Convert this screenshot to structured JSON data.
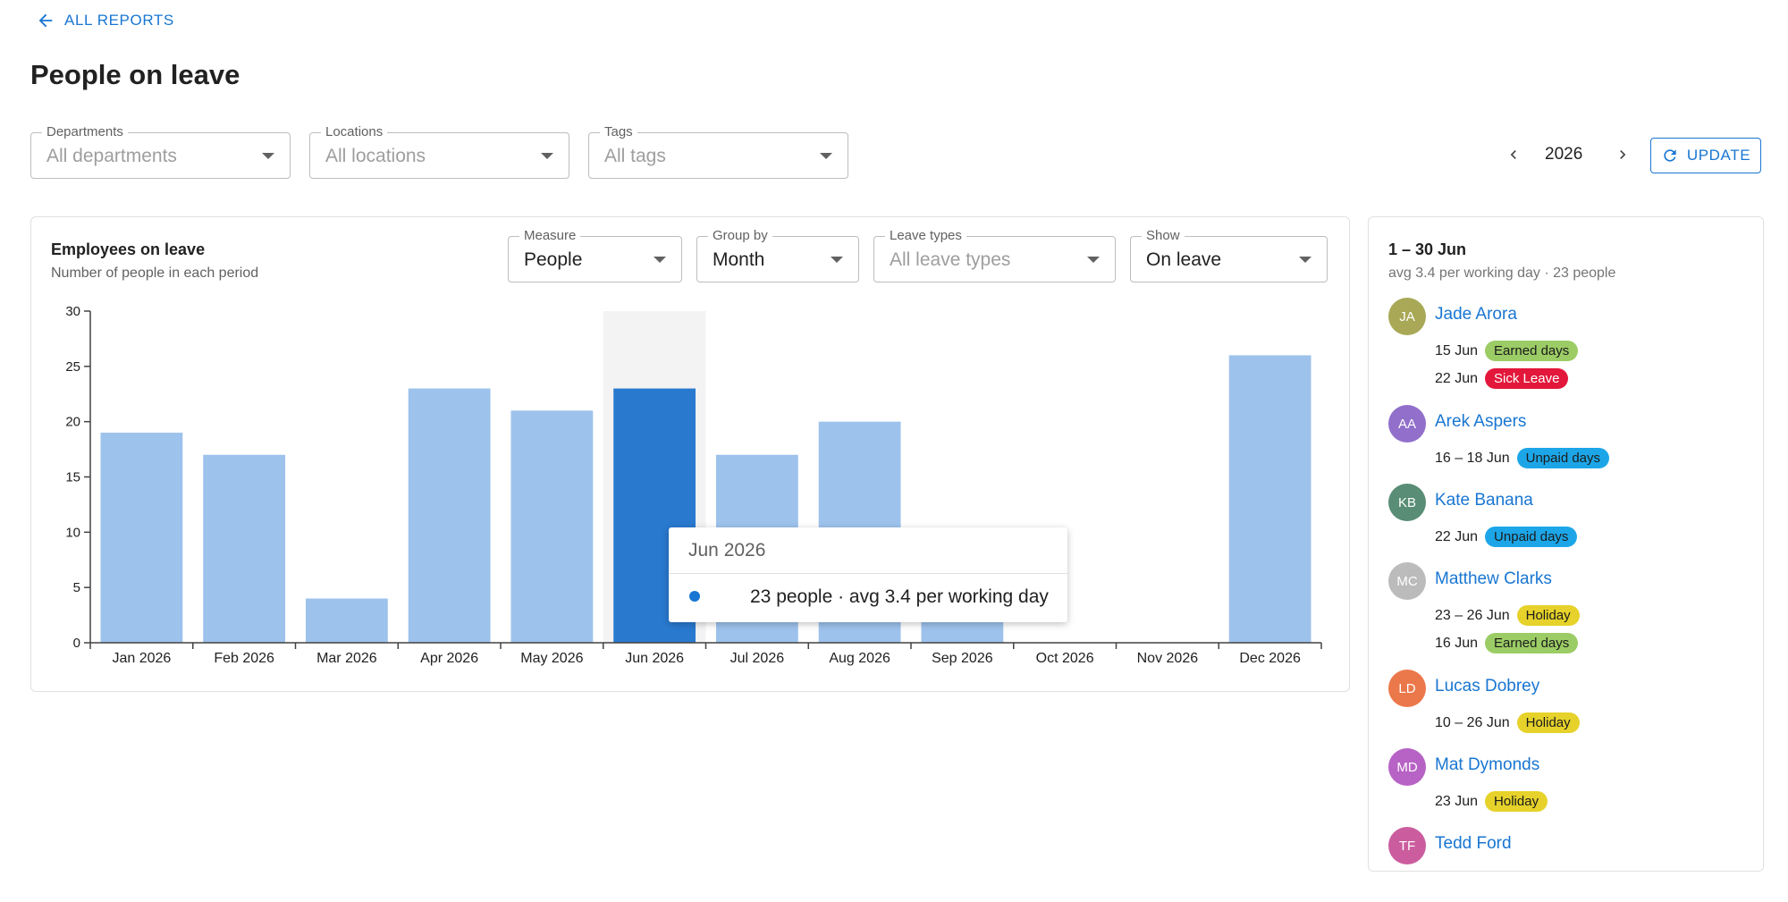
{
  "nav": {
    "back_label": "ALL REPORTS"
  },
  "page": {
    "title": "People on leave"
  },
  "filters": {
    "departments": {
      "label": "Departments",
      "value": "All departments"
    },
    "locations": {
      "label": "Locations",
      "value": "All locations"
    },
    "tags": {
      "label": "Tags",
      "value": "All tags"
    }
  },
  "year_nav": {
    "year": "2026",
    "update_label": "UPDATE"
  },
  "chart_card": {
    "title": "Employees on leave",
    "subtitle": "Number of people in each period",
    "controls": {
      "measure": {
        "label": "Measure",
        "value": "People"
      },
      "group_by": {
        "label": "Group by",
        "value": "Month"
      },
      "leave_types": {
        "label": "Leave types",
        "value": "All leave types"
      },
      "show": {
        "label": "Show",
        "value": "On leave"
      }
    }
  },
  "chart_data": {
    "type": "bar",
    "categories": [
      "Jan 2026",
      "Feb 2026",
      "Mar 2026",
      "Apr 2026",
      "May 2026",
      "Jun 2026",
      "Jul 2026",
      "Aug 2026",
      "Sep 2026",
      "Oct 2026",
      "Nov 2026",
      "Dec 2026"
    ],
    "values": [
      19,
      17,
      4,
      23,
      21,
      23,
      17,
      20,
      5,
      0,
      0,
      26
    ],
    "ylim": [
      0,
      30
    ],
    "yticks": [
      0,
      5,
      10,
      15,
      20,
      25,
      30
    ],
    "highlighted_category": "Jun 2026",
    "bar_color": "#9dc2ec",
    "highlight_color": "#2979cf",
    "grid": false
  },
  "tooltip": {
    "title": "Jun 2026",
    "text": "23 people · avg 3.4 per working day"
  },
  "side_panel": {
    "range": "1 – 30 Jun",
    "summary": "avg 3.4 per working day · 23 people",
    "people": [
      {
        "initials": "JA",
        "name": "Jade Arora",
        "avatar_color": "#9a9a3a",
        "leaves": [
          {
            "date": "15 Jun",
            "type": "Earned days",
            "chip_bg": "#9ccc65",
            "chip_fg": "#1b1b1b"
          },
          {
            "date": "22 Jun",
            "type": "Sick Leave",
            "chip_bg": "#e2173a",
            "chip_fg": "#ffffff"
          }
        ]
      },
      {
        "initials": "AA",
        "name": "Arek Aspers",
        "avatar_color": "#7e57c2",
        "leaves": [
          {
            "date": "16 – 18 Jun",
            "type": "Unpaid days",
            "chip_bg": "#1ca6e8",
            "chip_fg": "#1b1b1b"
          }
        ]
      },
      {
        "initials": "KB",
        "name": "Kate Banana",
        "avatar_color": "#3d7a5e",
        "leaves": [
          {
            "date": "22 Jun",
            "type": "Unpaid days",
            "chip_bg": "#1ca6e8",
            "chip_fg": "#1b1b1b"
          }
        ]
      },
      {
        "initials": "MC",
        "name": "Matthew Clarks",
        "avatar_color": "#b0b0b0",
        "leaves": [
          {
            "date": "23 – 26 Jun",
            "type": "Holiday",
            "chip_bg": "#e6d22a",
            "chip_fg": "#1b1b1b"
          },
          {
            "date": "16 Jun",
            "type": "Earned days",
            "chip_bg": "#9ccc65",
            "chip_fg": "#1b1b1b"
          }
        ]
      },
      {
        "initials": "LD",
        "name": "Lucas Dobrey",
        "avatar_color": "#e8612c",
        "leaves": [
          {
            "date": "10 – 26 Jun",
            "type": "Holiday",
            "chip_bg": "#e6d22a",
            "chip_fg": "#1b1b1b"
          }
        ]
      },
      {
        "initials": "MD",
        "name": "Mat Dymonds",
        "avatar_color": "#ab47bc",
        "leaves": [
          {
            "date": "23 Jun",
            "type": "Holiday",
            "chip_bg": "#e6d22a",
            "chip_fg": "#1b1b1b"
          }
        ]
      },
      {
        "initials": "TF",
        "name": "Tedd Ford",
        "avatar_color": "#c2418e",
        "leaves": []
      }
    ]
  }
}
